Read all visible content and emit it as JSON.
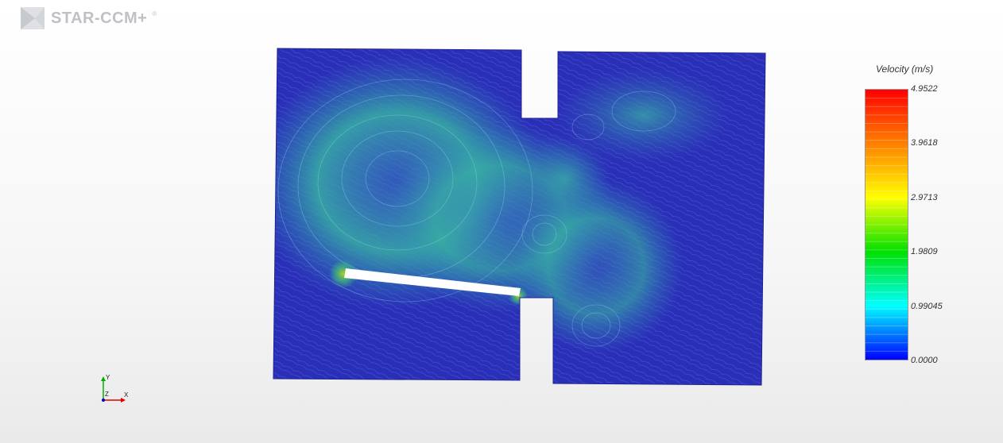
{
  "app": {
    "logo_text": "STAR-CCM+",
    "logo_mark": "®"
  },
  "legend": {
    "title": "Velocity (m/s)",
    "ticks": [
      "4.9522",
      "3.9618",
      "2.9713",
      "1.9809",
      "0.99045",
      "0.0000"
    ],
    "colors": [
      "#ff0000",
      "#ff8000",
      "#ffff00",
      "#00e000",
      "#00ffff",
      "#0000ff"
    ]
  },
  "triad": {
    "x_label": "X",
    "y_label": "Y",
    "z_label": "Z"
  },
  "scene": {
    "field_base_color": "#2a2fb8",
    "field_high_color": "#33b3a0",
    "baffle_color": "#ffffff"
  }
}
